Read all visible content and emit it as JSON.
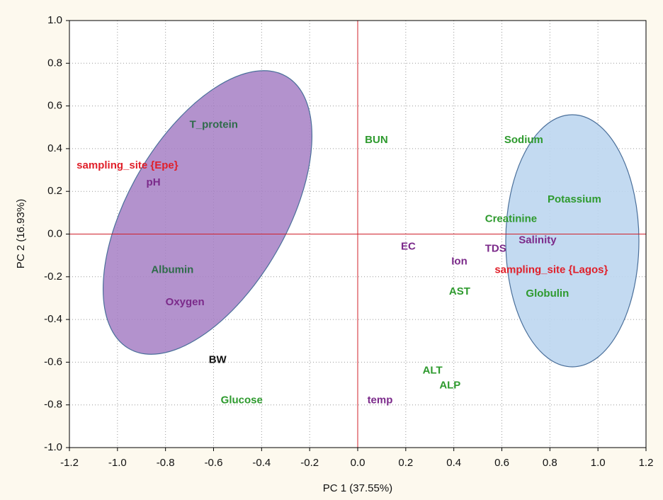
{
  "chart_data": {
    "type": "scatter",
    "xlabel": "PC 1 (37.55%)",
    "ylabel": "PC 2 (16.93%)",
    "xlim": [
      -1.2,
      1.2
    ],
    "ylim": [
      -1.0,
      1.0
    ],
    "xticks": [
      -1.2,
      {
        "value": -1.0,
        "label": "-1.0"
      },
      -0.8,
      -0.6,
      -0.4,
      -0.2,
      {
        "value": 0.0,
        "label": "0.0"
      },
      0.2,
      0.4,
      0.6,
      0.8,
      {
        "value": 1.0,
        "label": "1.0"
      },
      1.2
    ],
    "yticks": [
      {
        "value": -1.0,
        "label": "-1.0"
      },
      -0.8,
      -0.6,
      -0.4,
      -0.2,
      {
        "value": 0.0,
        "label": "0.0"
      },
      0.2,
      0.4,
      0.6,
      0.8,
      {
        "value": 1.0,
        "label": "1.0"
      }
    ],
    "grid": true,
    "reference_line_color": "#d0202a",
    "points": [
      {
        "label": "T_protein",
        "x": -0.7,
        "y": 0.51,
        "color": "#2f6b4a"
      },
      {
        "label": "sampling_site {Epe}",
        "x": -1.17,
        "y": 0.32,
        "color": "#e0202a"
      },
      {
        "label": "pH",
        "x": -0.88,
        "y": 0.24,
        "color": "#7b2a8a"
      },
      {
        "label": "Albumin",
        "x": -0.86,
        "y": -0.17,
        "color": "#2f6b4a"
      },
      {
        "label": "Oxygen",
        "x": -0.8,
        "y": -0.32,
        "color": "#7b2a8a"
      },
      {
        "label": "BW",
        "x": -0.62,
        "y": -0.59,
        "color": "#111111"
      },
      {
        "label": "Glucose",
        "x": -0.57,
        "y": -0.78,
        "color": "#2e9a2e"
      },
      {
        "label": "BUN",
        "x": 0.03,
        "y": 0.44,
        "color": "#2e9a2e"
      },
      {
        "label": "Sodium",
        "x": 0.61,
        "y": 0.44,
        "color": "#2e9a2e"
      },
      {
        "label": "Potassium",
        "x": 0.79,
        "y": 0.16,
        "color": "#2e9a2e"
      },
      {
        "label": "Creatinine",
        "x": 0.53,
        "y": 0.07,
        "color": "#2e9a2e"
      },
      {
        "label": "Salinity",
        "x": 0.67,
        "y": -0.03,
        "color": "#7b2a8a"
      },
      {
        "label": "TDS",
        "x": 0.53,
        "y": -0.07,
        "color": "#7b2a8a"
      },
      {
        "label": "EC",
        "x": 0.18,
        "y": -0.06,
        "color": "#7b2a8a"
      },
      {
        "label": "Ion",
        "x": 0.39,
        "y": -0.13,
        "color": "#7b2a8a"
      },
      {
        "label": "sampling_site {Lagos}",
        "x": 0.57,
        "y": -0.17,
        "color": "#e0202a"
      },
      {
        "label": "AST",
        "x": 0.38,
        "y": -0.27,
        "color": "#2e9a2e"
      },
      {
        "label": "Globulin",
        "x": 0.7,
        "y": -0.28,
        "color": "#2e9a2e"
      },
      {
        "label": "ALT",
        "x": 0.27,
        "y": -0.64,
        "color": "#2e9a2e"
      },
      {
        "label": "ALP",
        "x": 0.34,
        "y": -0.71,
        "color": "#2e9a2e"
      },
      {
        "label": "temp",
        "x": 0.04,
        "y": -0.78,
        "color": "#7b2a8a"
      }
    ]
  }
}
